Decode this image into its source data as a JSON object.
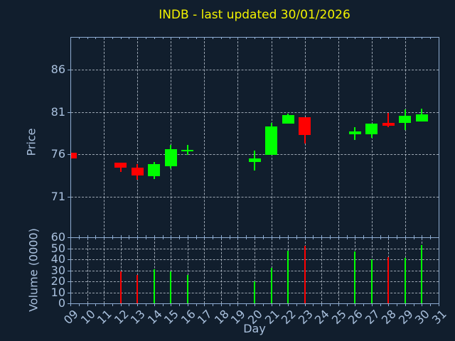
{
  "title": "INDB - last updated 30/01/2026",
  "axes": {
    "price_label": "Price",
    "volume_label": "Volume (0000)",
    "x_label": "Day"
  },
  "colors": {
    "background": "#111e2d",
    "spine": "#8fadd2",
    "grid": "#bfc8d4",
    "tick_label": "#a9c0dd",
    "title": "#f2f200",
    "up": "#00ff00",
    "down": "#ff0000"
  },
  "chart_data": {
    "type": "candlestick",
    "title": "INDB - last updated 30/01/2026",
    "xlabel": "Day",
    "price_ylabel": "Price",
    "volume_ylabel": "Volume (0000)",
    "xlim": [
      9,
      31
    ],
    "x_tick_labels": [
      "09",
      "10",
      "11",
      "12",
      "13",
      "14",
      "15",
      "16",
      "17",
      "18",
      "19",
      "20",
      "21",
      "22",
      "23",
      "24",
      "25",
      "26",
      "27",
      "28",
      "29",
      "30",
      "31"
    ],
    "price_ylim": [
      66.2,
      89.85
    ],
    "price_yticks": [
      71,
      76,
      81,
      86
    ],
    "volume_ylim": [
      0,
      60
    ],
    "volume_yticks": [
      0,
      10,
      20,
      30,
      40,
      50,
      60
    ],
    "grid": "dashed; price panel vertical lines every 2 days, volume panel every day",
    "legend": "none",
    "candles": [
      {
        "day": 9,
        "open": 76.2,
        "high": 76.2,
        "low": 75.5,
        "close": 75.5,
        "volume": 0
      },
      {
        "day": 12,
        "open": 75.0,
        "high": 75.0,
        "low": 73.9,
        "close": 74.4,
        "volume": 29
      },
      {
        "day": 13,
        "open": 74.4,
        "high": 74.8,
        "low": 73.0,
        "close": 73.5,
        "volume": 26
      },
      {
        "day": 14,
        "open": 73.4,
        "high": 75.1,
        "low": 73.1,
        "close": 74.8,
        "volume": 31
      },
      {
        "day": 15,
        "open": 74.6,
        "high": 77.1,
        "low": 74.3,
        "close": 76.6,
        "volume": 29
      },
      {
        "day": 16,
        "open": 76.4,
        "high": 77.1,
        "low": 75.9,
        "close": 76.5,
        "volume": 26
      },
      {
        "day": 20,
        "open": 75.1,
        "high": 76.4,
        "low": 74.1,
        "close": 75.5,
        "volume": 20
      },
      {
        "day": 21,
        "open": 75.9,
        "high": 79.7,
        "low": 75.9,
        "close": 79.3,
        "volume": 32
      },
      {
        "day": 22,
        "open": 79.6,
        "high": 80.8,
        "low": 79.6,
        "close": 80.6,
        "volume": 48
      },
      {
        "day": 23,
        "open": 80.4,
        "high": 80.4,
        "low": 77.3,
        "close": 78.3,
        "volume": 52
      },
      {
        "day": 26,
        "open": 78.4,
        "high": 79.2,
        "low": 77.7,
        "close": 78.7,
        "volume": 47
      },
      {
        "day": 27,
        "open": 78.4,
        "high": 79.6,
        "low": 77.9,
        "close": 79.6,
        "volume": 40
      },
      {
        "day": 28,
        "open": 79.7,
        "high": 80.9,
        "low": 79.2,
        "close": 79.4,
        "volume": 42
      },
      {
        "day": 29,
        "open": 79.7,
        "high": 81.3,
        "low": 78.9,
        "close": 80.5,
        "volume": 41
      },
      {
        "day": 30,
        "open": 79.9,
        "high": 81.4,
        "low": 79.9,
        "close": 80.7,
        "volume": 53
      }
    ]
  }
}
